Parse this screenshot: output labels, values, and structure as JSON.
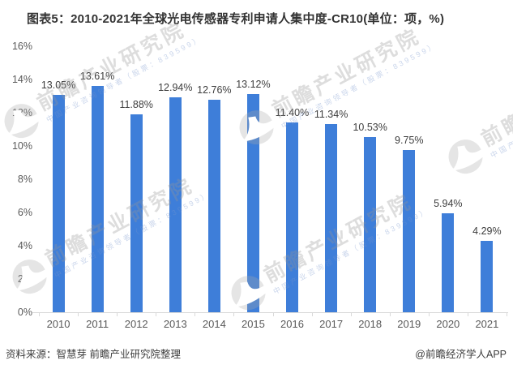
{
  "title": "图表5：2010-2021年全球光电传感器专利申请人集中度-CR10(单位：项，%)",
  "chart_data": {
    "type": "bar",
    "categories": [
      "2010",
      "2011",
      "2012",
      "2013",
      "2014",
      "2015",
      "2016",
      "2017",
      "2018",
      "2019",
      "2020",
      "2021"
    ],
    "values": [
      13.05,
      13.61,
      11.88,
      12.94,
      12.76,
      13.12,
      11.4,
      11.34,
      10.53,
      9.75,
      5.94,
      4.29
    ],
    "value_labels": [
      "13.05%",
      "13.61%",
      "11.88%",
      "12.94%",
      "12.76%",
      "13.12%",
      "11.40%",
      "11.34%",
      "10.53%",
      "9.75%",
      "5.94%",
      "4.29%"
    ],
    "title": "图表5：2010-2021年全球光电传感器专利申请人集中度-CR10(单位：项，%)",
    "xlabel": "",
    "ylabel": "",
    "ylim": [
      0,
      16
    ],
    "ytick_values": [
      0,
      2,
      4,
      6,
      8,
      10,
      12,
      14,
      16
    ],
    "ytick_labels": [
      "0%",
      "2%",
      "4%",
      "6%",
      "8%",
      "10%",
      "12%",
      "14%",
      "16%"
    ],
    "grid": false,
    "legend": "none",
    "bar_color": "#3e7ed9"
  },
  "footer": {
    "source": "资料来源：智慧芽 前瞻产业研究院整理",
    "credit": "@前瞻经济学人APP"
  },
  "watermark": {
    "logo_icon": "qianzhan-globe-logo-icon",
    "text": "前瞻产业研究院",
    "subtext": "中国产业咨询领导者（股票：839599）"
  },
  "colors": {
    "bar": "#3e7ed9",
    "title_text": "#333333",
    "axis_text": "#595959",
    "value_text": "#3d3d3d",
    "axis_line": "#d9d9d9",
    "background": "#ffffff"
  }
}
